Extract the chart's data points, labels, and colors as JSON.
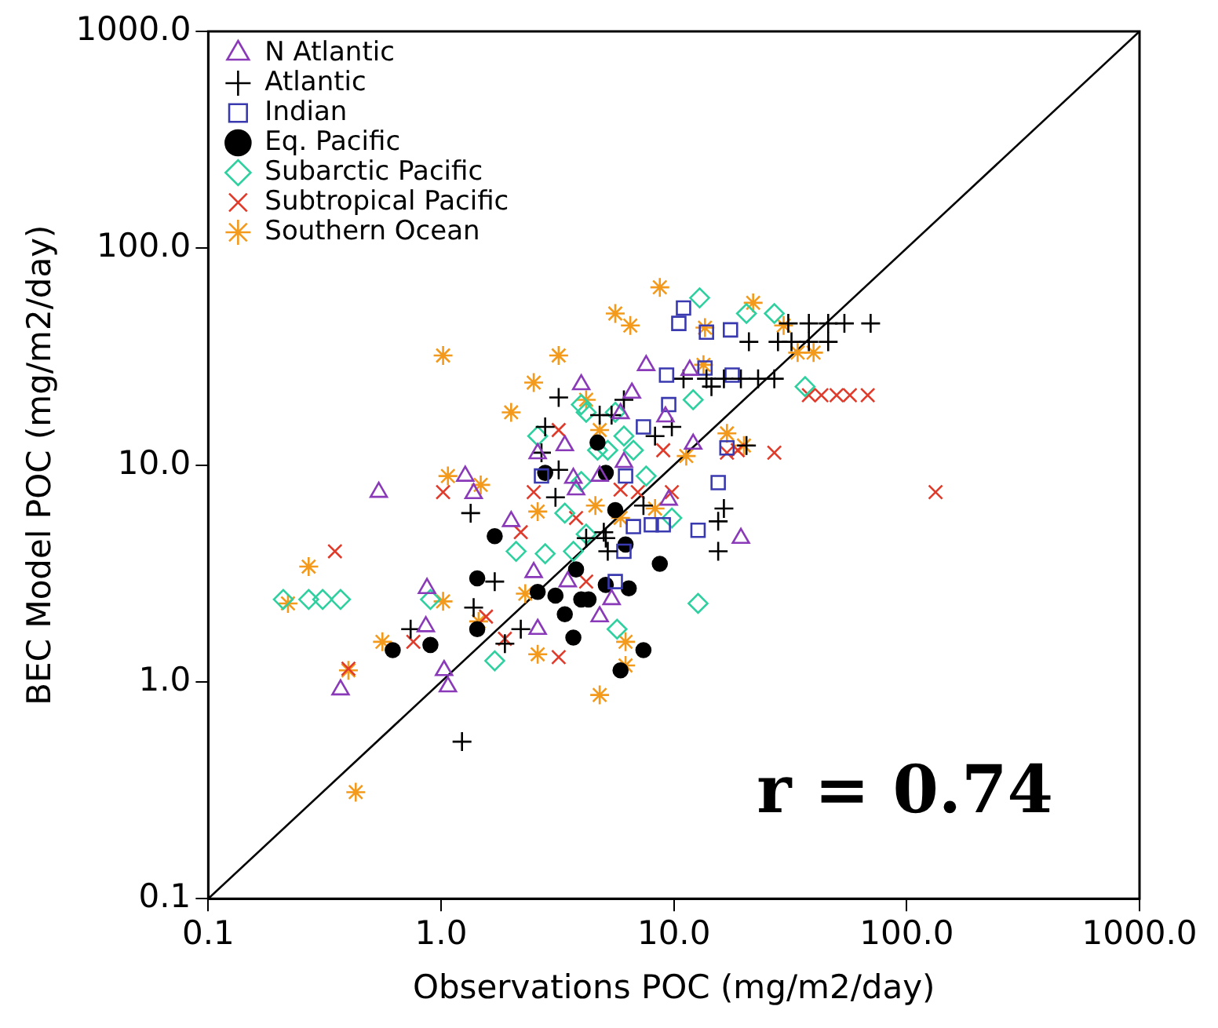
{
  "chart_data": {
    "type": "scatter",
    "xlabel": "Observations POC (mg/m2/day)",
    "ylabel": "BEC Model POC (mg/m2/day)",
    "log": "xy",
    "xlim": [
      0.1,
      1000
    ],
    "ylim": [
      0.1,
      1000
    ],
    "xticks": [
      {
        "value": 0.1,
        "label": "0.1"
      },
      {
        "value": 1,
        "label": "1.0"
      },
      {
        "value": 10,
        "label": "10.0"
      },
      {
        "value": 100,
        "label": "100.0"
      },
      {
        "value": 1000,
        "label": "1000.0"
      }
    ],
    "yticks": [
      {
        "value": 0.1,
        "label": "0.1"
      },
      {
        "value": 1,
        "label": "1.0"
      },
      {
        "value": 10,
        "label": "10.0"
      },
      {
        "value": 100,
        "label": "100.0"
      },
      {
        "value": 1000,
        "label": "1000.0"
      }
    ],
    "grid": false,
    "legend": "top left",
    "annotations": [
      "r = 0.74"
    ],
    "series": [
      {
        "name": "N Atlantic",
        "color": "#8a3ab9",
        "marker": "triangle",
        "x": [
          0.54,
          0.87,
          0.86,
          0.37,
          1.03,
          1.07,
          1.27,
          1.38,
          2.0,
          2.6,
          7.6,
          11.7,
          4.0,
          6.6,
          5.9,
          9.2,
          3.4,
          12.1,
          6.1,
          4.8,
          3.7,
          3.8,
          9.5,
          19.4,
          3.5,
          5.4,
          4.8,
          2.5,
          2.6
        ],
        "values": [
          7.5,
          2.7,
          1.8,
          0.92,
          1.13,
          0.95,
          8.9,
          7.4,
          5.5,
          11.3,
          28.8,
          27.4,
          23.5,
          21.5,
          17.3,
          16.7,
          12.3,
          12.5,
          10.3,
          8.9,
          8.7,
          7.7,
          6.9,
          4.6,
          2.9,
          2.4,
          2.0,
          3.2,
          1.75
        ]
      },
      {
        "name": "Atlantic",
        "color": "#000000",
        "marker": "cross",
        "x": [
          31,
          38,
          46,
          54,
          70,
          28,
          32,
          38,
          46,
          11,
          13.8,
          16.4,
          19.4,
          23,
          27,
          21,
          14.5,
          3.2,
          6.1,
          4.8,
          5.4,
          9.8,
          8.3,
          3.2,
          20.5,
          3.1,
          7.4,
          16.4,
          15.5,
          5.0,
          2.8,
          2.7,
          1.34,
          1.7,
          1.38,
          0.74,
          1.88,
          2.2,
          1.23,
          4.2,
          5.1,
          5.2,
          15.5
        ],
        "values": [
          45,
          45,
          45,
          45,
          45,
          37,
          37,
          37,
          37,
          25,
          25,
          25,
          25,
          25,
          25,
          37,
          23,
          20.5,
          20,
          17,
          17,
          15,
          13.6,
          9.5,
          12.3,
          7.1,
          6.5,
          6.3,
          5.5,
          4.9,
          15,
          11.4,
          6.0,
          2.9,
          2.2,
          1.75,
          1.5,
          1.75,
          0.53,
          4.6,
          4.6,
          4.0,
          4.0
        ]
      },
      {
        "name": "Indian",
        "color": "#3a3ab0",
        "marker": "square",
        "x": [
          11,
          10.5,
          13.8,
          17.5,
          9.3,
          13.6,
          17.8,
          9.5,
          7.4,
          16.9,
          6.2,
          15.5,
          6.7,
          8.0,
          9.0,
          12.7,
          6.1,
          5.6,
          2.7
        ],
        "values": [
          53,
          45,
          41,
          42,
          26,
          28,
          26,
          19,
          15,
          12,
          8.9,
          8.3,
          5.2,
          5.3,
          5.3,
          5.0,
          4.0,
          2.9,
          8.9
        ]
      },
      {
        "name": "Eq. Pacific",
        "color": "#000000",
        "marker": "circle",
        "x": [
          2.8,
          1.7,
          4.7,
          5.1,
          6.2,
          5.6,
          1.43,
          1.43,
          0.9,
          0.62,
          2.6,
          8.7,
          3.8,
          5.1,
          6.4,
          3.1,
          4.0,
          4.3,
          3.4,
          3.7,
          7.4,
          5.9
        ],
        "values": [
          9.2,
          4.7,
          12.7,
          9.2,
          4.3,
          6.2,
          3.0,
          1.75,
          1.48,
          1.4,
          2.6,
          3.5,
          3.3,
          2.8,
          2.7,
          2.5,
          2.4,
          2.4,
          2.05,
          1.6,
          1.4,
          1.13
        ]
      },
      {
        "name": "Subarctic Pacific",
        "color": "#2fd0a0",
        "marker": "diamond",
        "x": [
          12.9,
          20.5,
          27,
          36.6,
          12.1,
          4.0,
          4.2,
          5.6,
          6.1,
          4.7,
          5.2,
          6.7,
          7.6,
          4.0,
          3.4,
          9.8,
          4.2,
          2.6,
          0.21,
          0.27,
          0.31,
          0.37,
          2.1,
          2.8,
          0.9,
          1.7,
          12.7,
          5.7,
          3.7
        ],
        "values": [
          59,
          50,
          50,
          23,
          20,
          19,
          17.5,
          17.5,
          13.6,
          11.7,
          11.7,
          11.7,
          8.9,
          8.4,
          6.0,
          5.7,
          4.8,
          13.6,
          2.4,
          2.4,
          2.4,
          2.4,
          4.0,
          3.9,
          2.4,
          1.25,
          2.3,
          1.75,
          4.0
        ]
      },
      {
        "name": "Subtropical Pacific",
        "color": "#e03a2a",
        "marker": "x",
        "x": [
          38,
          43,
          50,
          57,
          68,
          3.2,
          9.0,
          16.9,
          18.8,
          27,
          133,
          5.9,
          7.0,
          9.8,
          3.8,
          1.02,
          2.5,
          2.2,
          0.35,
          0.4,
          0.76,
          1.56,
          1.88,
          3.2,
          4.2
        ],
        "values": [
          21,
          21,
          21,
          21,
          21,
          14.5,
          11.7,
          11.4,
          11.7,
          11.4,
          7.5,
          7.7,
          7.5,
          7.5,
          5.7,
          7.5,
          7.5,
          4.9,
          4.0,
          1.15,
          1.53,
          2.0,
          1.58,
          1.3,
          2.9
        ]
      },
      {
        "name": "Southern Ocean",
        "color": "#f39a1c",
        "x": [
          1.02,
          2.5,
          2.0,
          1.07,
          1.48,
          2.6,
          8.7,
          5.6,
          6.5,
          3.2,
          21.9,
          13.6,
          29.6,
          34,
          39.8,
          13.4,
          4.2,
          16.9,
          4.8,
          11.3,
          20,
          4.6,
          5.9,
          8.3,
          0.27,
          0.22,
          1.02,
          0.56,
          0.4,
          1.45,
          2.3,
          2.6,
          0.43,
          6.2,
          6.2,
          4.8
        ],
        "values": [
          32,
          24,
          17.5,
          8.9,
          8.1,
          6.1,
          66,
          50,
          44,
          32,
          56,
          43,
          44,
          33,
          33,
          29,
          20,
          14,
          14.5,
          11,
          12.3,
          6.5,
          5.7,
          6.3,
          3.4,
          2.3,
          2.35,
          1.53,
          1.13,
          1.9,
          2.55,
          1.34,
          0.31,
          1.53,
          1.19,
          0.87
        ]
      },
      {
        "type": "line",
        "color": "#000000",
        "marker": "none",
        "line_style": "solid",
        "x": [
          0.1,
          1000
        ],
        "values": [
          0.1,
          1000
        ]
      }
    ]
  }
}
